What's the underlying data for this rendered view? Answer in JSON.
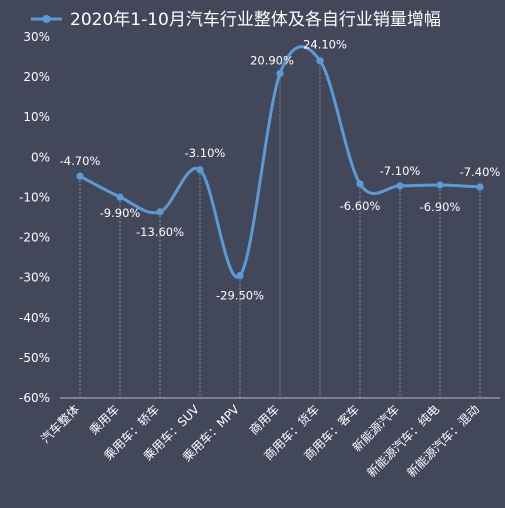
{
  "chart_data": {
    "type": "line",
    "title": "2020年1-10月汽车行业整体及各自行业销量增幅",
    "xlabel": "",
    "ylabel": "",
    "ylim": [
      -60,
      30
    ],
    "yticks": [
      "30%",
      "20%",
      "10%",
      "0%",
      "-10%",
      "-20%",
      "-30%",
      "-40%",
      "-50%",
      "-60%"
    ],
    "ytick_values": [
      30,
      20,
      10,
      0,
      -10,
      -20,
      -30,
      -40,
      -50,
      -60
    ],
    "grid": "vertical-dashed",
    "legend": "top",
    "categories": [
      "汽车整体",
      "乘用车",
      "乘用车：轿车",
      "乘用车：SUV",
      "乘用车：MPV",
      "商用车",
      "商用车：货车",
      "商用车：客车",
      "新能源汽车",
      "新能源汽车：纯电",
      "新能源汽车：混动"
    ],
    "series": [
      {
        "name": "2020年1-10月汽车行业整体及各自行业销量增幅",
        "values": [
          -4.7,
          -9.9,
          -13.6,
          -3.1,
          -29.5,
          20.9,
          24.1,
          -6.6,
          -7.1,
          -6.9,
          -7.4
        ],
        "labels": [
          "-4.70%",
          "-9.90%",
          "-13.60%",
          "-3.10%",
          "-29.50%",
          "20.90%",
          "24.10%",
          "-6.60%",
          "-7.10%",
          "-6.90%",
          "-7.40%"
        ]
      }
    ],
    "colors": {
      "background": "#43475a",
      "line": "#5b9bd5",
      "label": "#ffffff",
      "highlight_label": "#ffff00",
      "grid": "#9a9ca8",
      "axis": "#b8bac4"
    }
  }
}
